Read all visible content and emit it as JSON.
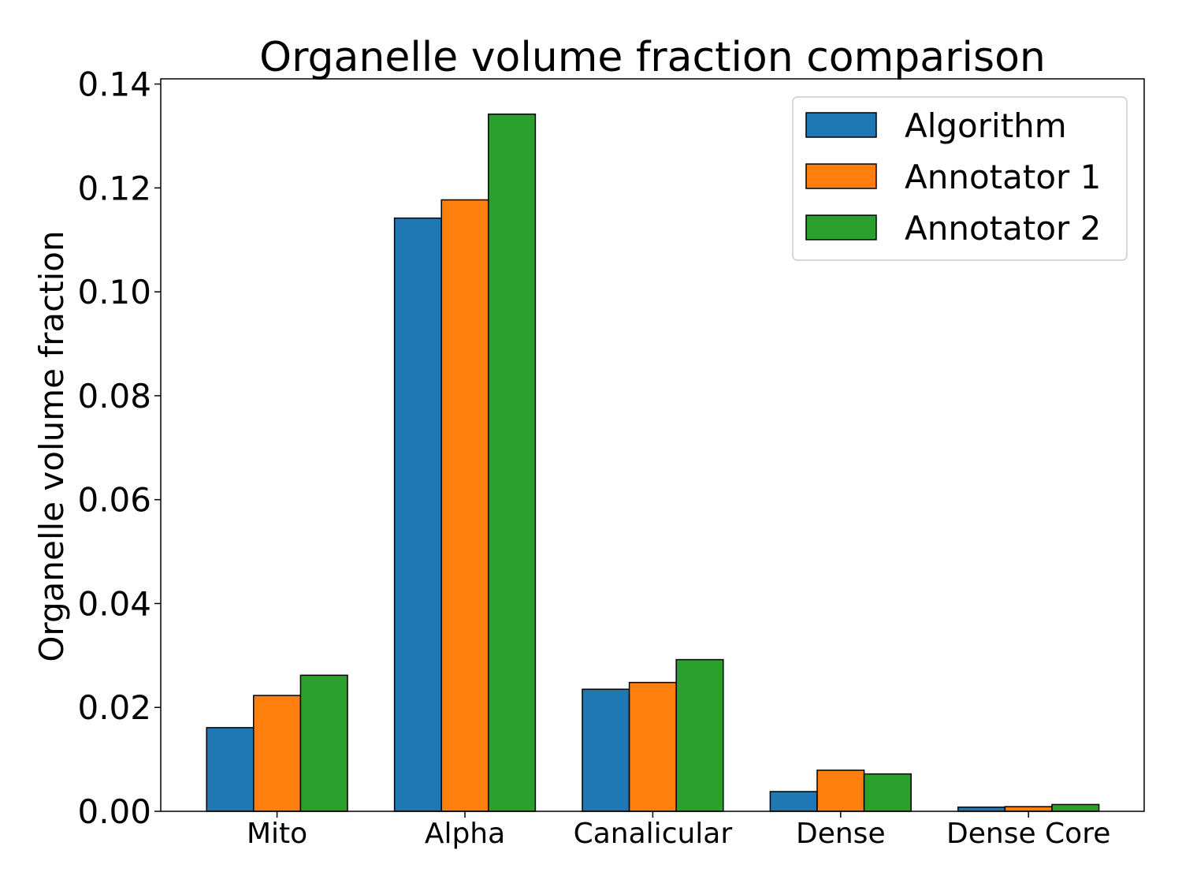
{
  "chart_data": {
    "type": "bar",
    "title": "Organelle volume fraction comparison",
    "xlabel": "",
    "ylabel": "Organelle volume fraction",
    "ylim": [
      0,
      0.141
    ],
    "yticks": [
      "0.00",
      "0.02",
      "0.04",
      "0.06",
      "0.08",
      "0.10",
      "0.12",
      "0.14"
    ],
    "ytick_values": [
      0,
      0.02,
      0.04,
      0.06,
      0.08,
      0.1,
      0.12,
      0.14
    ],
    "categories": [
      "Mito",
      "Alpha",
      "Canalicular",
      "Dense",
      "Dense Core"
    ],
    "series": [
      {
        "name": "Algorithm",
        "color": "#1f77b4",
        "values": [
          0.0161,
          0.1142,
          0.0235,
          0.0038,
          0.0008
        ]
      },
      {
        "name": "Annotator 1",
        "color": "#ff7f0e",
        "values": [
          0.0223,
          0.1177,
          0.0248,
          0.0079,
          0.0009
        ]
      },
      {
        "name": "Annotator 2",
        "color": "#2ca02c",
        "values": [
          0.0262,
          0.1342,
          0.0292,
          0.0072,
          0.0013
        ]
      }
    ],
    "grid": false,
    "legend_position": "top-right"
  }
}
